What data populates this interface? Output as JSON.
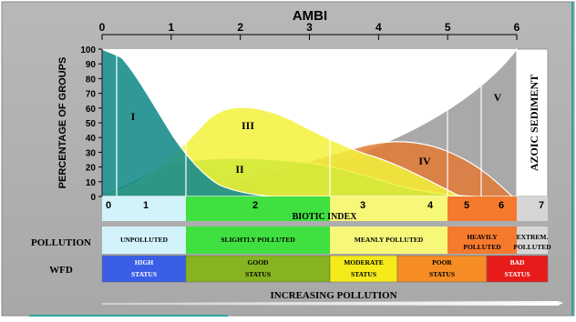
{
  "top_axis": {
    "title": "AMBI",
    "ticks": [
      "0",
      "1",
      "2",
      "3",
      "4",
      "5",
      "6"
    ]
  },
  "y_axis": {
    "label": "PERCENTAGE OF GROUPS",
    "ticks": [
      "100",
      "90",
      "80",
      "70",
      "60",
      "50",
      "40",
      "30",
      "20",
      "10",
      "0"
    ]
  },
  "groups": [
    {
      "label": "I",
      "color": "#1a8e8c"
    },
    {
      "label": "II",
      "color": "#2fae2c"
    },
    {
      "label": "III",
      "color": "#f2f23c"
    },
    {
      "label": "IV",
      "color": "#e27a35"
    },
    {
      "label": "V",
      "color": "#9a9a9a"
    }
  ],
  "azoic_label": "AZOIC SEDIMENT",
  "biotic_index": {
    "title": "BIOTIC INDEX",
    "values": [
      "0",
      "1",
      "2",
      "3",
      "4",
      "5",
      "6",
      "7"
    ]
  },
  "pollution": {
    "row_label": "POLLUTION",
    "cells": [
      {
        "line1": "UNPOLLUTED",
        "line2": "",
        "color": "#d3f3fb"
      },
      {
        "line1": "SLIGHTLY POLLUTED",
        "line2": "",
        "color": "#3fe03f"
      },
      {
        "line1": "MEANLY POLLUTED",
        "line2": "",
        "color": "#f7f77a"
      },
      {
        "line1": "HEAVILY",
        "line2": "POLLUTED",
        "color": "#f57a2e"
      },
      {
        "line1": "EXTREM.",
        "line2": "POLLUTED",
        "color": "#d6d6d6"
      }
    ]
  },
  "wfd": {
    "row_label": "WFD",
    "cells": [
      {
        "line1": "HIGH",
        "line2": "STATUS",
        "color": "#3a5ee6"
      },
      {
        "line1": "GOOD",
        "line2": "STATUS",
        "color": "#86b320"
      },
      {
        "line1": "MODERATE",
        "line2": "STATUS",
        "color": "#f5ea1a"
      },
      {
        "line1": "POOR",
        "line2": "STATUS",
        "color": "#f58c24"
      },
      {
        "line1": "BAD",
        "line2": "STATUS",
        "color": "#e81b1b"
      }
    ]
  },
  "footer": "INCREASING POLLUTION"
}
